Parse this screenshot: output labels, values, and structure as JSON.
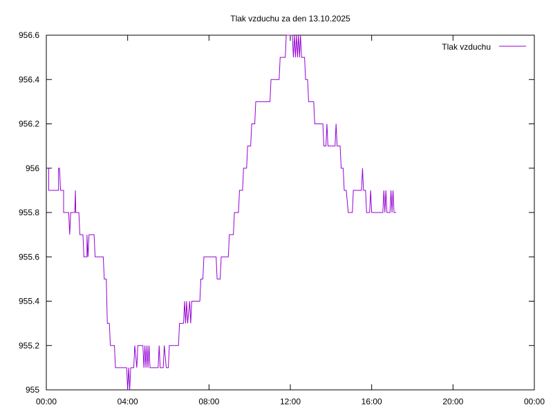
{
  "chart_data": {
    "type": "line",
    "title": "Tlak vzduchu za den 13.10.2025",
    "xlabel": "",
    "ylabel": "",
    "xlim_hours": [
      0,
      24
    ],
    "ylim": [
      955.0,
      956.6
    ],
    "grid": false,
    "legend_position": "top-right",
    "x_ticks": [
      {
        "hour": 0,
        "label": "00:00"
      },
      {
        "hour": 4,
        "label": "04:00"
      },
      {
        "hour": 8,
        "label": "08:00"
      },
      {
        "hour": 12,
        "label": "12:00"
      },
      {
        "hour": 16,
        "label": "16:00"
      },
      {
        "hour": 20,
        "label": "20:00"
      },
      {
        "hour": 24,
        "label": "00:00"
      }
    ],
    "y_ticks": [
      {
        "value": 955.0,
        "label": "955"
      },
      {
        "value": 955.2,
        "label": "955.2"
      },
      {
        "value": 955.4,
        "label": "955.4"
      },
      {
        "value": 955.6,
        "label": "955.6"
      },
      {
        "value": 955.8,
        "label": "955.8"
      },
      {
        "value": 956.0,
        "label": "956"
      },
      {
        "value": 956.2,
        "label": "956.2"
      },
      {
        "value": 956.4,
        "label": "956.4"
      },
      {
        "value": 956.6,
        "label": "956.6"
      }
    ],
    "series": [
      {
        "name": "Tlak vzduchu",
        "color": "#9400d3",
        "x_unit": "hours",
        "points": [
          [
            0.0,
            956.0
          ],
          [
            0.12,
            956.0
          ],
          [
            0.12,
            955.9
          ],
          [
            0.6,
            955.9
          ],
          [
            0.6,
            956.0
          ],
          [
            0.65,
            956.0
          ],
          [
            0.7,
            955.9
          ],
          [
            0.85,
            955.9
          ],
          [
            0.85,
            955.8
          ],
          [
            1.1,
            955.8
          ],
          [
            1.15,
            955.7
          ],
          [
            1.2,
            955.8
          ],
          [
            1.4,
            955.8
          ],
          [
            1.43,
            955.9
          ],
          [
            1.45,
            955.8
          ],
          [
            1.6,
            955.8
          ],
          [
            1.65,
            955.7
          ],
          [
            1.8,
            955.7
          ],
          [
            1.85,
            955.6
          ],
          [
            2.0,
            955.6
          ],
          [
            2.0,
            955.7
          ],
          [
            2.05,
            955.6
          ],
          [
            2.1,
            955.7
          ],
          [
            2.35,
            955.7
          ],
          [
            2.4,
            955.6
          ],
          [
            2.8,
            955.6
          ],
          [
            2.85,
            955.5
          ],
          [
            2.95,
            955.5
          ],
          [
            3.0,
            955.3
          ],
          [
            3.1,
            955.3
          ],
          [
            3.15,
            955.2
          ],
          [
            3.35,
            955.2
          ],
          [
            3.4,
            955.1
          ],
          [
            3.95,
            955.1
          ],
          [
            4.0,
            955.0
          ],
          [
            4.05,
            955.1
          ],
          [
            4.1,
            955.0
          ],
          [
            4.15,
            955.1
          ],
          [
            4.3,
            955.1
          ],
          [
            4.35,
            955.2
          ],
          [
            4.45,
            955.1
          ],
          [
            4.5,
            955.2
          ],
          [
            4.75,
            955.2
          ],
          [
            4.8,
            955.1
          ],
          [
            4.85,
            955.2
          ],
          [
            4.9,
            955.1
          ],
          [
            4.95,
            955.2
          ],
          [
            5.0,
            955.1
          ],
          [
            5.05,
            955.2
          ],
          [
            5.1,
            955.1
          ],
          [
            5.5,
            955.1
          ],
          [
            5.55,
            955.2
          ],
          [
            5.6,
            955.1
          ],
          [
            5.75,
            955.1
          ],
          [
            5.8,
            955.2
          ],
          [
            5.9,
            955.1
          ],
          [
            6.0,
            955.1
          ],
          [
            6.05,
            955.2
          ],
          [
            6.5,
            955.2
          ],
          [
            6.55,
            955.3
          ],
          [
            6.75,
            955.3
          ],
          [
            6.8,
            955.4
          ],
          [
            6.85,
            955.3
          ],
          [
            6.9,
            955.4
          ],
          [
            6.95,
            955.3
          ],
          [
            7.05,
            955.4
          ],
          [
            7.1,
            955.3
          ],
          [
            7.15,
            955.4
          ],
          [
            7.55,
            955.4
          ],
          [
            7.6,
            955.5
          ],
          [
            7.7,
            955.5
          ],
          [
            7.75,
            955.6
          ],
          [
            8.35,
            955.6
          ],
          [
            8.4,
            955.5
          ],
          [
            8.55,
            955.5
          ],
          [
            8.6,
            955.6
          ],
          [
            8.95,
            955.6
          ],
          [
            9.0,
            955.7
          ],
          [
            9.2,
            955.7
          ],
          [
            9.25,
            955.8
          ],
          [
            9.45,
            955.8
          ],
          [
            9.5,
            955.9
          ],
          [
            9.65,
            955.9
          ],
          [
            9.7,
            956.0
          ],
          [
            9.85,
            956.0
          ],
          [
            9.9,
            956.1
          ],
          [
            10.05,
            956.1
          ],
          [
            10.1,
            956.2
          ],
          [
            10.25,
            956.2
          ],
          [
            10.3,
            956.3
          ],
          [
            11.0,
            956.3
          ],
          [
            11.05,
            956.4
          ],
          [
            11.45,
            956.4
          ],
          [
            11.5,
            956.5
          ],
          [
            11.75,
            956.5
          ],
          [
            11.8,
            956.6
          ],
          [
            12.1,
            956.6
          ],
          [
            12.15,
            956.5
          ],
          [
            12.2,
            956.6
          ],
          [
            12.25,
            956.5
          ],
          [
            12.3,
            956.6
          ],
          [
            12.35,
            956.5
          ],
          [
            12.4,
            956.6
          ],
          [
            12.45,
            956.5
          ],
          [
            12.5,
            956.6
          ],
          [
            12.55,
            956.5
          ],
          [
            12.7,
            956.5
          ],
          [
            12.75,
            956.4
          ],
          [
            12.85,
            956.4
          ],
          [
            12.9,
            956.3
          ],
          [
            13.15,
            956.3
          ],
          [
            13.2,
            956.2
          ],
          [
            13.6,
            956.2
          ],
          [
            13.65,
            956.1
          ],
          [
            13.75,
            956.1
          ],
          [
            13.8,
            956.2
          ],
          [
            13.85,
            956.1
          ],
          [
            14.2,
            956.1
          ],
          [
            14.25,
            956.2
          ],
          [
            14.3,
            956.1
          ],
          [
            14.45,
            956.1
          ],
          [
            14.5,
            956.0
          ],
          [
            14.6,
            956.0
          ],
          [
            14.65,
            955.9
          ],
          [
            14.75,
            955.9
          ],
          [
            14.85,
            955.8
          ],
          [
            15.05,
            955.8
          ],
          [
            15.1,
            955.9
          ],
          [
            15.5,
            955.9
          ],
          [
            15.55,
            956.0
          ],
          [
            15.6,
            955.9
          ],
          [
            15.7,
            955.9
          ],
          [
            15.75,
            955.8
          ],
          [
            15.9,
            955.8
          ],
          [
            15.95,
            955.9
          ],
          [
            16.0,
            955.8
          ],
          [
            16.55,
            955.8
          ],
          [
            16.6,
            955.9
          ],
          [
            16.65,
            955.8
          ],
          [
            16.7,
            955.9
          ],
          [
            16.75,
            955.8
          ],
          [
            16.9,
            955.8
          ],
          [
            16.95,
            955.9
          ],
          [
            17.0,
            955.8
          ],
          [
            17.05,
            955.9
          ],
          [
            17.1,
            955.8
          ],
          [
            17.2,
            955.8
          ]
        ]
      }
    ]
  }
}
